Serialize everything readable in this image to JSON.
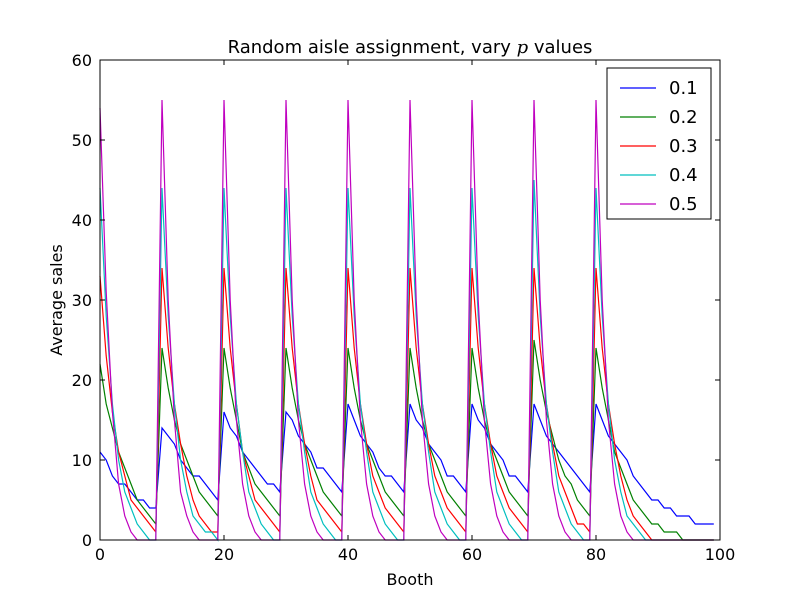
{
  "chart_data": {
    "type": "line",
    "title": "Random aisle assignment, vary p values",
    "title_parts": {
      "before": "Random aisle assignment, vary ",
      "italic": "p",
      "after": " values"
    },
    "xlabel": "Booth",
    "ylabel": "Average sales",
    "xlim": [
      0,
      100
    ],
    "ylim": [
      0,
      60
    ],
    "xticks": [
      0,
      20,
      40,
      60,
      80,
      100
    ],
    "yticks": [
      0,
      10,
      20,
      30,
      40,
      50,
      60
    ],
    "grid": false,
    "legend_position": "top-right",
    "series": [
      {
        "name": "0.1",
        "color": "#0000ff",
        "x": [
          0,
          1,
          2,
          3,
          4,
          5,
          6,
          7,
          8,
          9,
          10,
          11,
          12,
          13,
          14,
          15,
          16,
          17,
          18,
          19,
          20,
          21,
          22,
          23,
          24,
          25,
          26,
          27,
          28,
          29,
          30,
          31,
          32,
          33,
          34,
          35,
          36,
          37,
          38,
          39,
          40,
          41,
          42,
          43,
          44,
          45,
          46,
          47,
          48,
          49,
          50,
          51,
          52,
          53,
          54,
          55,
          56,
          57,
          58,
          59,
          60,
          61,
          62,
          63,
          64,
          65,
          66,
          67,
          68,
          69,
          70,
          71,
          72,
          73,
          74,
          75,
          76,
          77,
          78,
          79,
          80,
          81,
          82,
          83,
          84,
          85,
          86,
          87,
          88,
          89,
          90,
          91,
          92,
          93,
          94,
          95,
          96,
          97,
          98,
          99
        ],
        "y": [
          11,
          10,
          8,
          7,
          7,
          6,
          5,
          5,
          4,
          4,
          14,
          13,
          12,
          10,
          9,
          8,
          8,
          7,
          6,
          5,
          16,
          14,
          13,
          11,
          10,
          9,
          8,
          7,
          7,
          6,
          16,
          15,
          13,
          12,
          11,
          9,
          9,
          8,
          7,
          6,
          17,
          15,
          13,
          12,
          11,
          9,
          8,
          8,
          7,
          6,
          17,
          15,
          14,
          12,
          11,
          10,
          8,
          8,
          7,
          6,
          17,
          15,
          14,
          12,
          11,
          10,
          8,
          8,
          7,
          6,
          17,
          15,
          13,
          12,
          11,
          10,
          9,
          8,
          7,
          6,
          17,
          15,
          13,
          12,
          11,
          10,
          8,
          7,
          6,
          5,
          5,
          4,
          4,
          3,
          3,
          3,
          2,
          2,
          2,
          2
        ]
      },
      {
        "name": "0.2",
        "color": "#008000",
        "x": [
          0,
          1,
          2,
          3,
          4,
          5,
          6,
          7,
          8,
          9,
          10,
          11,
          12,
          13,
          14,
          15,
          16,
          17,
          18,
          19,
          20,
          21,
          22,
          23,
          24,
          25,
          26,
          27,
          28,
          29,
          30,
          31,
          32,
          33,
          34,
          35,
          36,
          37,
          38,
          39,
          40,
          41,
          42,
          43,
          44,
          45,
          46,
          47,
          48,
          49,
          50,
          51,
          52,
          53,
          54,
          55,
          56,
          57,
          58,
          59,
          60,
          61,
          62,
          63,
          64,
          65,
          66,
          67,
          68,
          69,
          70,
          71,
          72,
          73,
          74,
          75,
          76,
          77,
          78,
          79,
          80,
          81,
          82,
          83,
          84,
          85,
          86,
          87,
          88,
          89,
          90,
          91,
          92,
          93,
          94,
          95,
          96,
          97,
          98,
          99
        ],
        "y": [
          22,
          17,
          14,
          11,
          9,
          7,
          5,
          4,
          3,
          2,
          24,
          19,
          15,
          12,
          10,
          8,
          6,
          5,
          4,
          3,
          24,
          19,
          15,
          11,
          9,
          7,
          6,
          5,
          4,
          3,
          24,
          19,
          15,
          12,
          10,
          8,
          6,
          5,
          4,
          3,
          24,
          19,
          15,
          12,
          10,
          8,
          6,
          5,
          4,
          3,
          24,
          19,
          15,
          12,
          10,
          8,
          6,
          5,
          4,
          3,
          24,
          19,
          15,
          12,
          10,
          8,
          6,
          5,
          4,
          3,
          25,
          20,
          16,
          13,
          10,
          8,
          7,
          5,
          4,
          3,
          24,
          19,
          15,
          11,
          9,
          7,
          5,
          4,
          3,
          2,
          2,
          1,
          1,
          1,
          0,
          0,
          0,
          0,
          0,
          0
        ]
      },
      {
        "name": "0.3",
        "color": "#ff0000",
        "x": [
          0,
          1,
          2,
          3,
          4,
          5,
          6,
          7,
          8,
          9,
          10,
          11,
          12,
          13,
          14,
          15,
          16,
          17,
          18,
          19,
          20,
          21,
          22,
          23,
          24,
          25,
          26,
          27,
          28,
          29,
          30,
          31,
          32,
          33,
          34,
          35,
          36,
          37,
          38,
          39,
          40,
          41,
          42,
          43,
          44,
          45,
          46,
          47,
          48,
          49,
          50,
          51,
          52,
          53,
          54,
          55,
          56,
          57,
          58,
          59,
          60,
          61,
          62,
          63,
          64,
          65,
          66,
          67,
          68,
          69,
          70,
          71,
          72,
          73,
          74,
          75,
          76,
          77,
          78,
          79,
          80,
          81,
          82,
          83,
          84,
          85,
          86,
          87,
          88,
          89,
          90,
          91,
          92,
          93,
          94,
          95,
          96,
          97,
          98,
          99
        ],
        "y": [
          33,
          23,
          16,
          11,
          8,
          5,
          4,
          3,
          2,
          1,
          34,
          24,
          17,
          12,
          8,
          5,
          3,
          2,
          1,
          1,
          34,
          24,
          17,
          11,
          8,
          5,
          4,
          3,
          2,
          1,
          34,
          24,
          17,
          12,
          8,
          5,
          4,
          3,
          2,
          1,
          34,
          24,
          17,
          12,
          8,
          6,
          4,
          3,
          2,
          1,
          34,
          24,
          17,
          12,
          8,
          6,
          4,
          3,
          2,
          1,
          34,
          24,
          17,
          12,
          8,
          6,
          4,
          3,
          2,
          1,
          34,
          24,
          17,
          12,
          8,
          6,
          4,
          2,
          2,
          1,
          34,
          24,
          17,
          12,
          8,
          5,
          3,
          2,
          1,
          0,
          0,
          0,
          0,
          0,
          0,
          0,
          0,
          0,
          0,
          0
        ]
      },
      {
        "name": "0.4",
        "color": "#00bfbf",
        "x": [
          0,
          1,
          2,
          3,
          4,
          5,
          6,
          7,
          8,
          9,
          10,
          11,
          12,
          13,
          14,
          15,
          16,
          17,
          18,
          19,
          20,
          21,
          22,
          23,
          24,
          25,
          26,
          27,
          28,
          29,
          30,
          31,
          32,
          33,
          34,
          35,
          36,
          37,
          38,
          39,
          40,
          41,
          42,
          43,
          44,
          45,
          46,
          47,
          48,
          49,
          50,
          51,
          52,
          53,
          54,
          55,
          56,
          57,
          58,
          59,
          60,
          61,
          62,
          63,
          64,
          65,
          66,
          67,
          68,
          69,
          70,
          71,
          72,
          73,
          74,
          75,
          76,
          77,
          78,
          79,
          80,
          81,
          82,
          83,
          84,
          85,
          86,
          87,
          88,
          89,
          90,
          91,
          92,
          93,
          94,
          95,
          96,
          97,
          98,
          99
        ],
        "y": [
          44,
          28,
          17,
          10,
          6,
          4,
          2,
          1,
          0,
          0,
          44,
          28,
          17,
          10,
          6,
          3,
          2,
          1,
          1,
          0,
          44,
          28,
          17,
          11,
          6,
          4,
          2,
          1,
          0,
          0,
          44,
          28,
          17,
          11,
          6,
          4,
          2,
          1,
          0,
          0,
          44,
          28,
          17,
          11,
          6,
          4,
          2,
          1,
          0,
          0,
          44,
          28,
          17,
          11,
          6,
          4,
          2,
          1,
          0,
          0,
          44,
          28,
          17,
          11,
          6,
          4,
          2,
          1,
          0,
          0,
          45,
          28,
          17,
          11,
          6,
          4,
          2,
          1,
          0,
          0,
          44,
          28,
          17,
          10,
          6,
          3,
          2,
          1,
          0,
          0,
          0,
          0,
          0,
          0,
          0,
          0,
          0,
          0,
          0,
          0
        ]
      },
      {
        "name": "0.5",
        "color": "#bf00bf",
        "x": [
          0,
          1,
          2,
          3,
          4,
          5,
          6,
          7,
          8,
          9,
          10,
          11,
          12,
          13,
          14,
          15,
          16,
          17,
          18,
          19,
          20,
          21,
          22,
          23,
          24,
          25,
          26,
          27,
          28,
          29,
          30,
          31,
          32,
          33,
          34,
          35,
          36,
          37,
          38,
          39,
          40,
          41,
          42,
          43,
          44,
          45,
          46,
          47,
          48,
          49,
          50,
          51,
          52,
          53,
          54,
          55,
          56,
          57,
          58,
          59,
          60,
          61,
          62,
          63,
          64,
          65,
          66,
          67,
          68,
          69,
          70,
          71,
          72,
          73,
          74,
          75,
          76,
          77,
          78,
          79,
          80,
          81,
          82,
          83,
          84,
          85,
          86,
          87,
          88,
          89,
          90,
          91,
          92,
          93,
          94,
          95,
          96,
          97,
          98,
          99
        ],
        "y": [
          54,
          31,
          16,
          7,
          3,
          1,
          0,
          0,
          0,
          0,
          55,
          30,
          15,
          6,
          3,
          1,
          0,
          0,
          0,
          0,
          55,
          30,
          15,
          7,
          3,
          1,
          0,
          0,
          0,
          0,
          55,
          30,
          15,
          7,
          3,
          1,
          0,
          0,
          0,
          0,
          55,
          30,
          15,
          7,
          3,
          1,
          0,
          0,
          0,
          0,
          55,
          30,
          15,
          7,
          3,
          1,
          0,
          0,
          0,
          0,
          55,
          30,
          15,
          7,
          3,
          1,
          0,
          0,
          0,
          0,
          55,
          30,
          15,
          7,
          3,
          1,
          0,
          0,
          0,
          0,
          55,
          30,
          15,
          7,
          3,
          1,
          0,
          0,
          0,
          0,
          0,
          0,
          0,
          0,
          0,
          0,
          0,
          0,
          0,
          0
        ]
      }
    ]
  }
}
